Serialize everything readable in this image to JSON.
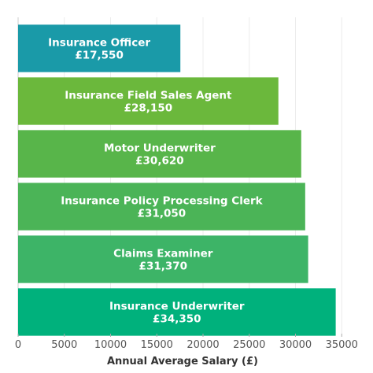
{
  "chart_data": {
    "type": "bar",
    "orientation": "horizontal",
    "title": "",
    "xlabel": "Annual Average Salary (£)",
    "ylabel": "",
    "xlim": [
      0,
      36000
    ],
    "xticks": [
      0,
      5000,
      10000,
      15000,
      20000,
      25000,
      30000,
      35000
    ],
    "xtick_labels": [
      "0",
      "5000",
      "10000",
      "15000",
      "20000",
      "25000",
      "30000",
      "35000"
    ],
    "grid": true,
    "categories": [
      "Insurance Officer",
      "Insurance Field Sales Agent",
      "Motor Underwriter",
      "Insurance Policy Processing Clerk",
      "Claims Examiner",
      "Insurance Underwriter"
    ],
    "values": [
      17550,
      28150,
      30620,
      31050,
      31370,
      34350
    ],
    "value_labels": [
      "£17,550",
      "£28,150",
      "£30,620",
      "£31,050",
      "£31,370",
      "£34,350"
    ],
    "colors": [
      "#1a9aa8",
      "#6bb83c",
      "#58b54a",
      "#4bb457",
      "#3db467",
      "#00b17c"
    ]
  }
}
